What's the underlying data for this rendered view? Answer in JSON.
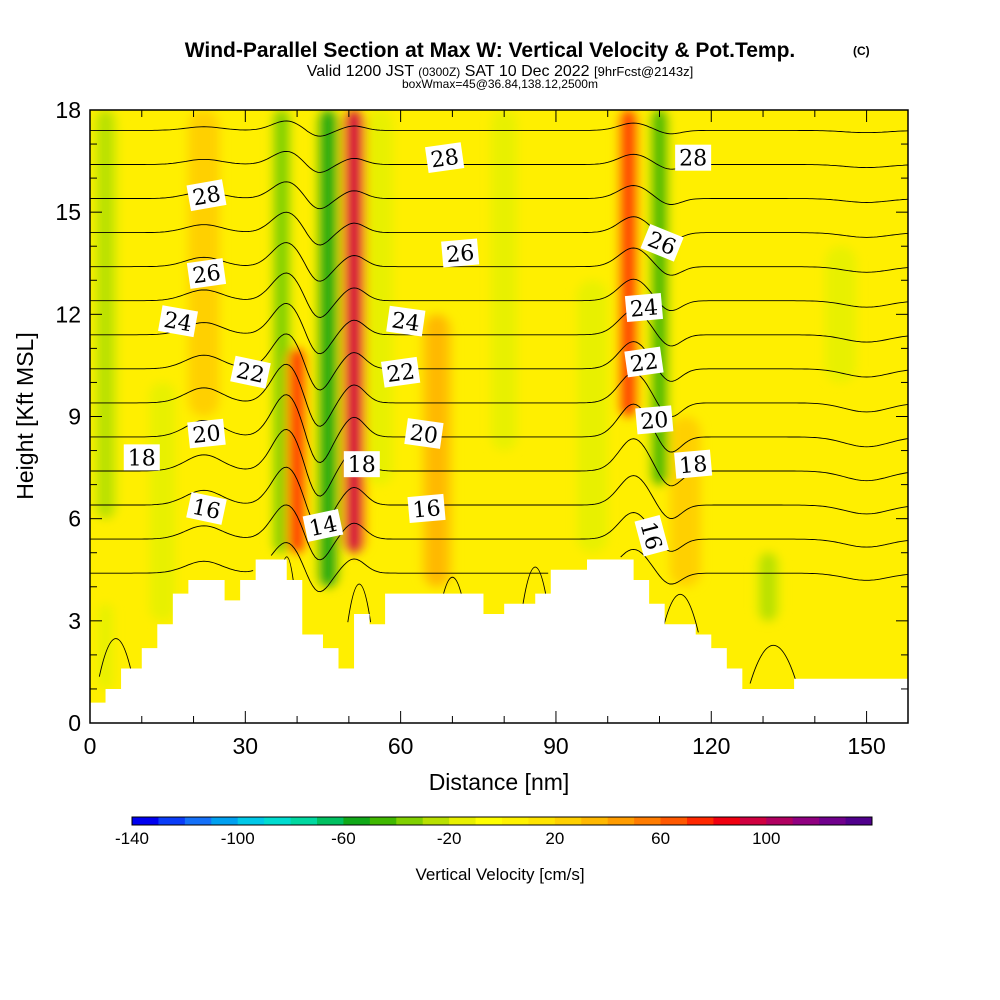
{
  "chart_data": {
    "type": "heatmap",
    "title": "Wind-Parallel Section at Max W: Vertical Velocity & Pot.Temp.",
    "copyright": "(C)",
    "subtitle": {
      "prefix": "Valid 1200 JST",
      "utc": "(0300Z)",
      "date": "SAT 10 Dec 2022",
      "forecast": "[9hrFcst@2143z]"
    },
    "box_note": "boxWmax=45@36.84,138.12,2500m",
    "xlabel": "Distance [nm]",
    "ylabel": "Height [Kft MSL]",
    "xlim": [
      0,
      158
    ],
    "ylim": [
      0,
      18
    ],
    "x_ticks": [
      "0",
      "30",
      "60",
      "90",
      "120",
      "150"
    ],
    "y_ticks": [
      "0",
      "3",
      "6",
      "9",
      "12",
      "15",
      "18"
    ],
    "colorbar": {
      "label": "Vertical Velocity [cm/s]",
      "min": -140,
      "max": 140,
      "step": 10,
      "tick_labels": [
        "-140",
        "-100",
        "-60",
        "-20",
        "20",
        "60",
        "100"
      ],
      "colors": [
        "#0000f0",
        "#0a3cf8",
        "#1470f8",
        "#00a0f0",
        "#00c8e8",
        "#00dcd0",
        "#00d8a0",
        "#00c060",
        "#10a818",
        "#40b800",
        "#80d000",
        "#b8e000",
        "#e8f000",
        "#ffff00",
        "#fff200",
        "#ffe400",
        "#ffd000",
        "#ffb800",
        "#ff9c00",
        "#ff7c00",
        "#ff5800",
        "#ff2800",
        "#f00010",
        "#d00040",
        "#b00060",
        "#900080",
        "#70008c",
        "#50008c"
      ]
    },
    "w_features": [
      {
        "x": 3,
        "z0": 6,
        "z1": 18,
        "w": -25,
        "half_width": 2.5
      },
      {
        "x": 3,
        "z0": 1,
        "z1": 3.5,
        "w": -18,
        "half_width": 1.5
      },
      {
        "x": 14,
        "z0": 3,
        "z1": 10,
        "w": -14,
        "half_width": 2.5
      },
      {
        "x": 22,
        "z0": 9,
        "z1": 18,
        "w": 26,
        "half_width": 3
      },
      {
        "x": 37,
        "z0": 5,
        "z1": 18,
        "w": -38,
        "half_width": 2
      },
      {
        "x": 40,
        "z0": 5,
        "z1": 11,
        "w": 70,
        "half_width": 2.2
      },
      {
        "x": 46,
        "z0": 4,
        "z1": 18,
        "w": -60,
        "half_width": 2.5
      },
      {
        "x": 51,
        "z0": 5,
        "z1": 18,
        "w": 95,
        "half_width": 2.5
      },
      {
        "x": 56,
        "z0": 7,
        "z1": 18,
        "w": -20,
        "half_width": 2.5
      },
      {
        "x": 67,
        "z0": 4,
        "z1": 12,
        "w": 32,
        "half_width": 3
      },
      {
        "x": 80,
        "z0": 8,
        "z1": 18,
        "w": -16,
        "half_width": 2.5
      },
      {
        "x": 97,
        "z0": 5,
        "z1": 13,
        "w": -12,
        "half_width": 3
      },
      {
        "x": 104,
        "z0": 9,
        "z1": 18,
        "w": 72,
        "half_width": 2.2
      },
      {
        "x": 110,
        "z0": 7,
        "z1": 18,
        "w": -48,
        "half_width": 2.2
      },
      {
        "x": 115,
        "z0": 4,
        "z1": 9,
        "w": 28,
        "half_width": 3
      },
      {
        "x": 145,
        "z0": 10,
        "z1": 14,
        "w": -18,
        "half_width": 3
      },
      {
        "x": 131,
        "z0": 3,
        "z1": 5,
        "w": -22,
        "half_width": 2.5
      }
    ],
    "terrain": [
      [
        0,
        0.6
      ],
      [
        3,
        0.6
      ],
      [
        3,
        1
      ],
      [
        6,
        1
      ],
      [
        6,
        1.6
      ],
      [
        10,
        1.6
      ],
      [
        10,
        2.2
      ],
      [
        13,
        2.2
      ],
      [
        13,
        2.9
      ],
      [
        16,
        2.9
      ],
      [
        16,
        3.8
      ],
      [
        19,
        3.8
      ],
      [
        19,
        4.2
      ],
      [
        26,
        4.2
      ],
      [
        26,
        3.6
      ],
      [
        29,
        3.6
      ],
      [
        29,
        4.2
      ],
      [
        32,
        4.2
      ],
      [
        32,
        4.8
      ],
      [
        38,
        4.8
      ],
      [
        38,
        4.2
      ],
      [
        41,
        4.2
      ],
      [
        41,
        2.6
      ],
      [
        45,
        2.6
      ],
      [
        45,
        2.2
      ],
      [
        48,
        2.2
      ],
      [
        48,
        1.6
      ],
      [
        51,
        1.6
      ],
      [
        51,
        3.2
      ],
      [
        54,
        3.2
      ],
      [
        54,
        2.9
      ],
      [
        57,
        2.9
      ],
      [
        57,
        3.8
      ],
      [
        76,
        3.8
      ],
      [
        76,
        3.2
      ],
      [
        80,
        3.2
      ],
      [
        80,
        3.5
      ],
      [
        86,
        3.5
      ],
      [
        86,
        3.8
      ],
      [
        89,
        3.8
      ],
      [
        89,
        4.5
      ],
      [
        96,
        4.5
      ],
      [
        96,
        4.8
      ],
      [
        105,
        4.8
      ],
      [
        105,
        4.2
      ],
      [
        108,
        4.2
      ],
      [
        108,
        3.5
      ],
      [
        111,
        3.5
      ],
      [
        111,
        2.9
      ],
      [
        117,
        2.9
      ],
      [
        117,
        2.6
      ],
      [
        120,
        2.6
      ],
      [
        120,
        2.2
      ],
      [
        123,
        2.2
      ],
      [
        123,
        1.6
      ],
      [
        126,
        1.6
      ],
      [
        126,
        1
      ],
      [
        136,
        1
      ],
      [
        136,
        1.3
      ],
      [
        158,
        1.3
      ]
    ],
    "theta_contours": {
      "min": 12,
      "max": 30,
      "step": 1,
      "disturbances": [
        {
          "x": 38,
          "amp": 1.3,
          "width": 4
        },
        {
          "x": 44,
          "amp": -0.9,
          "width": 3
        },
        {
          "x": 51,
          "amp": 0.6,
          "width": 3
        },
        {
          "x": 105,
          "amp": 1.0,
          "width": 4
        },
        {
          "x": 112,
          "amp": -0.5,
          "width": 3
        },
        {
          "x": 22,
          "amp": 0.5,
          "width": 5
        },
        {
          "x": 150,
          "amp": -0.3,
          "width": 6
        }
      ]
    },
    "contour_labels": [
      {
        "text": "28",
        "x": 22.5,
        "z": 15.5,
        "rot": -10
      },
      {
        "text": "28",
        "x": 68.5,
        "z": 16.6,
        "rot": -8
      },
      {
        "text": "28",
        "x": 116.5,
        "z": 16.6,
        "rot": 0
      },
      {
        "text": "26",
        "x": 22.5,
        "z": 13.2,
        "rot": -8
      },
      {
        "text": "26",
        "x": 71.5,
        "z": 13.8,
        "rot": -5
      },
      {
        "text": "26",
        "x": 110.5,
        "z": 14.1,
        "rot": 22
      },
      {
        "text": "24",
        "x": 17,
        "z": 11.8,
        "rot": 10
      },
      {
        "text": "24",
        "x": 61,
        "z": 11.8,
        "rot": 8
      },
      {
        "text": "24",
        "x": 107,
        "z": 12.2,
        "rot": -5
      },
      {
        "text": "22",
        "x": 31,
        "z": 10.3,
        "rot": 12
      },
      {
        "text": "22",
        "x": 60,
        "z": 10.3,
        "rot": -8
      },
      {
        "text": "22",
        "x": 107,
        "z": 10.6,
        "rot": -8
      },
      {
        "text": "20",
        "x": 22.5,
        "z": 8.5,
        "rot": -6
      },
      {
        "text": "20",
        "x": 64.5,
        "z": 8.5,
        "rot": 8
      },
      {
        "text": "20",
        "x": 109,
        "z": 8.9,
        "rot": -5
      },
      {
        "text": "18",
        "x": 10,
        "z": 7.8,
        "rot": 0
      },
      {
        "text": "18",
        "x": 52.5,
        "z": 7.6,
        "rot": 0
      },
      {
        "text": "18",
        "x": 116.5,
        "z": 7.6,
        "rot": -5
      },
      {
        "text": "16",
        "x": 22.5,
        "z": 6.3,
        "rot": 12
      },
      {
        "text": "16",
        "x": 65,
        "z": 6.3,
        "rot": -5
      },
      {
        "text": "16",
        "x": 108.5,
        "z": 5.5,
        "rot": 75
      },
      {
        "text": "14",
        "x": 45,
        "z": 5.8,
        "rot": -12
      }
    ]
  }
}
